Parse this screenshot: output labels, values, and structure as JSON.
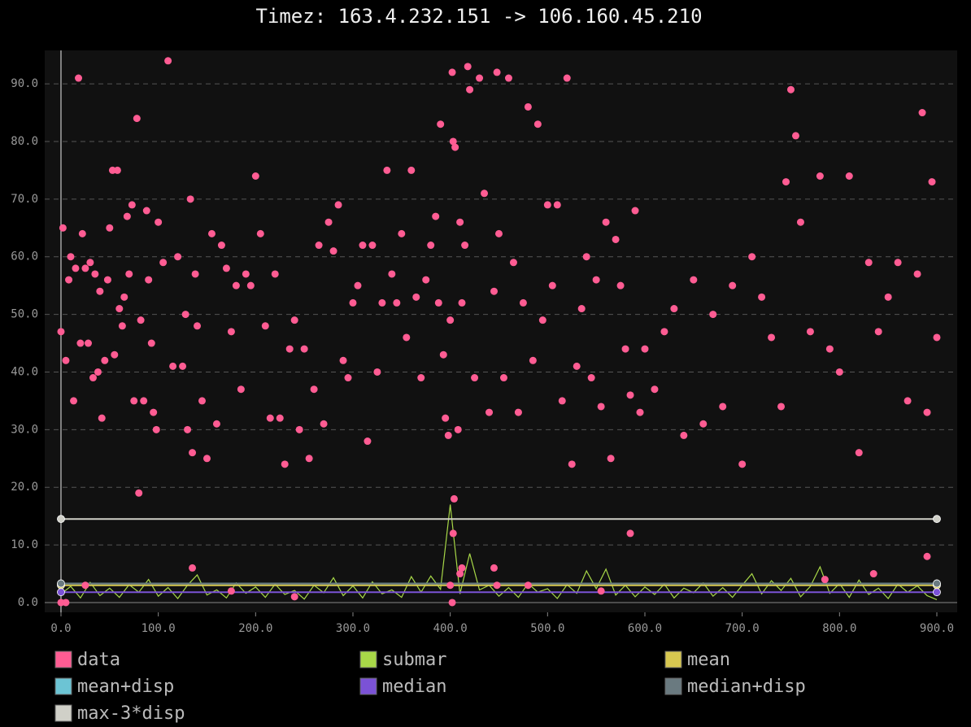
{
  "chart_data": {
    "type": "scatter",
    "title": "Timez: 163.4.232.151 -> 106.160.45.210",
    "xlim": [
      -16.7,
      920.9
    ],
    "ylim": [
      -1.7,
      95.8
    ],
    "xticks": [
      {
        "value": 0,
        "label": "0.0"
      },
      {
        "value": 100,
        "label": "100.0"
      },
      {
        "value": 200,
        "label": "200.0"
      },
      {
        "value": 300,
        "label": "300.0"
      },
      {
        "value": 400,
        "label": "400.0"
      },
      {
        "value": 500,
        "label": "500.0"
      },
      {
        "value": 600,
        "label": "600.0"
      },
      {
        "value": 700,
        "label": "700.0"
      },
      {
        "value": 800,
        "label": "800.0"
      },
      {
        "value": 900,
        "label": "900.0"
      }
    ],
    "yticks": [
      {
        "value": 0,
        "label": "0.0"
      },
      {
        "value": 10,
        "label": "10.0"
      },
      {
        "value": 20,
        "label": "20.0"
      },
      {
        "value": 30,
        "label": "30.0"
      },
      {
        "value": 40,
        "label": "40.0"
      },
      {
        "value": 50,
        "label": "50.0"
      },
      {
        "value": 60,
        "label": "60.0"
      },
      {
        "value": 70,
        "label": "70.0"
      },
      {
        "value": 80,
        "label": "80.0"
      },
      {
        "value": 90,
        "label": "90.0"
      }
    ],
    "grid": true,
    "series": [
      {
        "name": "data",
        "kind": "points",
        "color": "#ff5c93",
        "x": [
          0,
          2,
          5,
          8,
          10,
          13,
          15,
          18,
          20,
          22,
          25,
          28,
          30,
          33,
          35,
          38,
          40,
          42,
          45,
          48,
          50,
          53,
          55,
          58,
          60,
          63,
          65,
          68,
          70,
          73,
          75,
          78,
          80,
          82,
          85,
          88,
          90,
          93,
          95,
          98,
          100,
          105,
          110,
          115,
          120,
          125,
          128,
          130,
          133,
          135,
          138,
          140,
          145,
          150,
          155,
          160,
          165,
          170,
          175,
          180,
          185,
          190,
          195,
          200,
          205,
          210,
          215,
          220,
          225,
          230,
          235,
          240,
          245,
          250,
          255,
          260,
          265,
          270,
          275,
          280,
          285,
          290,
          295,
          300,
          305,
          310,
          315,
          320,
          325,
          330,
          335,
          340,
          345,
          350,
          355,
          360,
          365,
          370,
          375,
          380,
          385,
          388,
          390,
          393,
          395,
          398,
          400,
          402,
          403,
          405,
          408,
          410,
          412,
          415,
          418,
          420,
          425,
          430,
          435,
          440,
          445,
          448,
          450,
          455,
          460,
          465,
          470,
          475,
          480,
          485,
          490,
          495,
          500,
          505,
          510,
          515,
          520,
          525,
          530,
          535,
          540,
          545,
          550,
          555,
          560,
          565,
          570,
          575,
          580,
          585,
          590,
          595,
          600,
          610,
          620,
          630,
          640,
          650,
          660,
          670,
          680,
          690,
          700,
          710,
          720,
          730,
          740,
          745,
          750,
          755,
          760,
          770,
          780,
          790,
          800,
          810,
          820,
          830,
          840,
          850,
          860,
          870,
          880,
          885,
          890,
          895,
          900,
          0,
          5,
          25,
          135,
          240,
          400,
          403,
          404,
          402,
          410,
          412,
          445,
          448,
          480,
          555,
          585,
          785,
          835,
          890,
          175
        ],
        "values": [
          47,
          65,
          42,
          56,
          60,
          35,
          58,
          91,
          45,
          64,
          58,
          45,
          59,
          39,
          57,
          40,
          54,
          32,
          42,
          56,
          65,
          75,
          43,
          75,
          51,
          48,
          53,
          67,
          57,
          69,
          35,
          84,
          19,
          49,
          35,
          68,
          56,
          45,
          33,
          30,
          66,
          59,
          94,
          41,
          60,
          41,
          50,
          30,
          70,
          26,
          57,
          48,
          35,
          25,
          64,
          31,
          62,
          58,
          47,
          55,
          37,
          57,
          55,
          74,
          64,
          48,
          32,
          57,
          32,
          24,
          44,
          49,
          30,
          44,
          25,
          37,
          62,
          31,
          66,
          61,
          69,
          42,
          39,
          52,
          55,
          62,
          28,
          62,
          40,
          52,
          75,
          57,
          52,
          64,
          46,
          75,
          53,
          39,
          56,
          62,
          67,
          52,
          83,
          43,
          32,
          29,
          49,
          92,
          80,
          79,
          30,
          66,
          52,
          62,
          93,
          89,
          39,
          91,
          71,
          33,
          54,
          92,
          64,
          39,
          91,
          59,
          33,
          52,
          86,
          42,
          83,
          49,
          69,
          55,
          69,
          35,
          91,
          24,
          41,
          51,
          60,
          39,
          56,
          34,
          66,
          25,
          63,
          55,
          44,
          36,
          68,
          33,
          44,
          37,
          47,
          51,
          29,
          56,
          31,
          50,
          34,
          55,
          24,
          60,
          53,
          46,
          34,
          73,
          89,
          81,
          66,
          47,
          74,
          44,
          40,
          74,
          26,
          59,
          47,
          53,
          59,
          35,
          57,
          85,
          33,
          73,
          46,
          0,
          0,
          3,
          6,
          1,
          3,
          12,
          18,
          0,
          5,
          6,
          6,
          3,
          3,
          2,
          12,
          4,
          5,
          8,
          2
        ]
      },
      {
        "name": "submar",
        "kind": "line",
        "color": "#a8d848",
        "x": [
          0,
          10,
          20,
          30,
          40,
          50,
          60,
          70,
          80,
          90,
          100,
          110,
          120,
          130,
          140,
          150,
          160,
          170,
          180,
          190,
          200,
          210,
          220,
          230,
          240,
          250,
          260,
          270,
          280,
          290,
          300,
          310,
          320,
          330,
          340,
          350,
          360,
          370,
          380,
          390,
          400,
          410,
          420,
          430,
          440,
          450,
          460,
          470,
          480,
          490,
          500,
          510,
          520,
          530,
          540,
          550,
          560,
          570,
          580,
          590,
          600,
          610,
          620,
          630,
          640,
          650,
          660,
          670,
          680,
          690,
          700,
          710,
          720,
          730,
          740,
          750,
          760,
          770,
          780,
          790,
          800,
          810,
          820,
          830,
          840,
          850,
          860,
          870,
          880,
          890,
          900
        ],
        "values": [
          1.5,
          2.8,
          0.8,
          3.5,
          1.2,
          2.5,
          0.9,
          3.1,
          1.8,
          4.0,
          1.1,
          2.6,
          0.7,
          3.0,
          4.8,
          1.3,
          2.2,
          0.8,
          3.4,
          1.6,
          2.7,
          0.9,
          3.2,
          1.4,
          2.1,
          0.6,
          3.0,
          1.7,
          4.3,
          1.2,
          2.9,
          0.8,
          3.6,
          1.5,
          2.2,
          0.9,
          4.5,
          1.8,
          4.6,
          2.3,
          17.0,
          1.5,
          8.5,
          2.2,
          3.0,
          1.1,
          2.6,
          0.9,
          3.3,
          1.8,
          2.4,
          0.7,
          3.1,
          1.6,
          5.5,
          2.4,
          5.8,
          1.3,
          3.0,
          1.0,
          2.7,
          1.4,
          3.2,
          0.8,
          2.5,
          1.7,
          3.4,
          1.1,
          2.6,
          0.9,
          3.0,
          5.0,
          1.5,
          3.8,
          2.1,
          4.2,
          1.0,
          2.8,
          6.2,
          1.6,
          3.3,
          0.9,
          3.9,
          1.4,
          2.5,
          0.7,
          3.2,
          1.8,
          2.9,
          1.2,
          0.5
        ]
      },
      {
        "name": "mean",
        "kind": "level",
        "color": "#d8c850",
        "x": [
          0,
          900
        ],
        "values": [
          3.0,
          3.0
        ]
      },
      {
        "name": "mean+disp",
        "kind": "level",
        "color": "#6cc4d4",
        "x": [
          0,
          900
        ],
        "values": [
          3.3,
          3.3
        ]
      },
      {
        "name": "median",
        "kind": "level",
        "color": "#7b52d6",
        "x": [
          0,
          900
        ],
        "values": [
          1.8,
          1.8
        ]
      },
      {
        "name": "median+disp",
        "kind": "level",
        "color": "#6a7a80",
        "x": [
          0,
          900
        ],
        "values": [
          3.3,
          3.3
        ]
      },
      {
        "name": "max-3*disp",
        "kind": "level",
        "color": "#d0d0c8",
        "x": [
          0,
          900
        ],
        "values": [
          14.5,
          14.5
        ]
      }
    ]
  }
}
